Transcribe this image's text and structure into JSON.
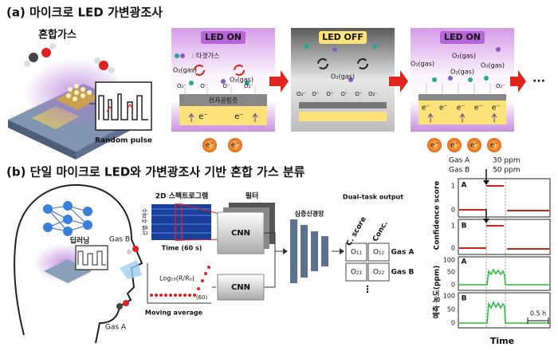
{
  "panel_a": {
    "title": "(a) 마이크로 LED 가변광조사",
    "mixed_gas": "혼합가스",
    "random_pulse": "Random pulse",
    "legend": ": 타겟가스",
    "stages": [
      {
        "label": "LED ON",
        "gas_labels": [
          "O₂(gas)",
          "O₂(gas)"
        ],
        "surface_labels": [
          "O₂⁻",
          "O⁻",
          "O⁻",
          "O₂⁻"
        ],
        "layer": "전자공핍층",
        "electrons": [
          "e⁻",
          "e⁻"
        ]
      },
      {
        "label": "LED OFF",
        "gas_labels": [
          "O₂(gas)"
        ],
        "surface_labels": [
          "O₂⁻",
          "O⁻",
          "O⁻",
          "O⁻",
          "O⁻",
          "O₂⁻"
        ]
      },
      {
        "label": "LED ON",
        "gas_labels": [
          "O₂(gas)",
          "O₂(gas)",
          "O₂(gas)",
          "O₂(gas)"
        ],
        "surface_labels": [
          "O₂⁻"
        ],
        "electrons": [
          "e⁻",
          "e⁻",
          "e⁻",
          "e⁻",
          "e⁻"
        ]
      }
    ],
    "light_electrons": [
      [
        "e⁻",
        "e⁻"
      ],
      [
        "e⁻",
        "e⁻",
        "e⁻",
        "e⁻"
      ]
    ],
    "continuation": "···"
  },
  "panel_b": {
    "title": "(b) 단일 마이크로 LED와 가변광조사 기반 혼합 가스 분류",
    "deep_learning": "딥러닝",
    "gas_b": "Gas B",
    "gas_a": "Gas A",
    "spectrogram": "2D 스펙트로그램",
    "frequency": "선별 주파수",
    "time_axis": "Time (60 s)",
    "filter": "필터",
    "cnn": [
      "CNN",
      "CNN"
    ],
    "log_label": "Log₁₀(R/R₀)",
    "window": "(60)",
    "moving_average": "Moving average",
    "dnn": "심층신경망",
    "output_title": "Dual-task output",
    "output_columns": [
      "C. score",
      "Conc."
    ],
    "output_cells": [
      [
        "O₁₁",
        "O₁₂"
      ],
      [
        "O₂₁",
        "O₂₂"
      ]
    ],
    "output_rows": [
      "Gas A",
      "Gas B"
    ],
    "more": "⋮"
  },
  "results": {
    "legend": [
      [
        "Gas A",
        "30 ppm"
      ],
      [
        "Gas B",
        "50 ppm"
      ]
    ],
    "confidence_label": "Confidence score",
    "concentration_label": "예측 농도(ppm)",
    "x_label": "Time",
    "panels": [
      {
        "tag": "A",
        "ticks": [
          "1",
          "0"
        ]
      },
      {
        "tag": "B",
        "ticks": [
          "1",
          "0"
        ]
      },
      {
        "tag": "A",
        "ticks": [
          "100",
          "50",
          "0"
        ]
      },
      {
        "tag": "B",
        "ticks": [
          "100",
          "50",
          "0"
        ]
      }
    ],
    "scale_bar": "0.5 h"
  }
}
